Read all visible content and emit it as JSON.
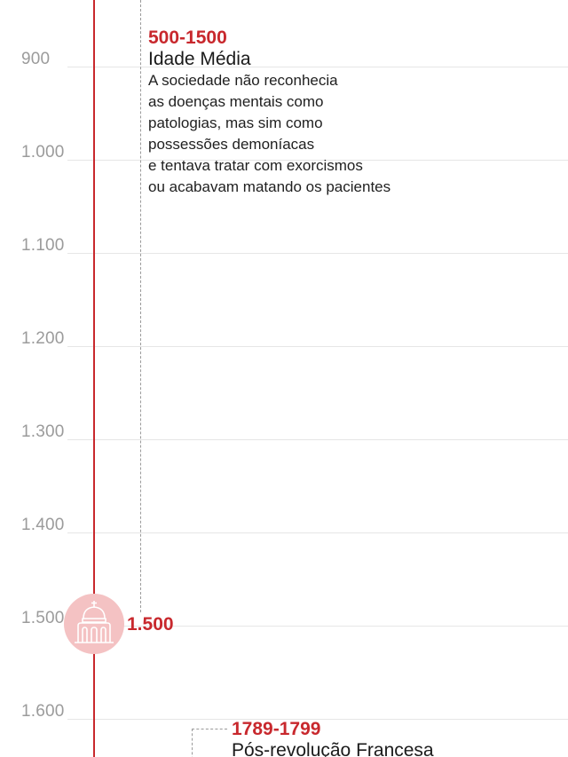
{
  "timeline": {
    "years": [
      "900",
      "1.000",
      "1.100",
      "1.200",
      "1.300",
      "1.400",
      "1.500",
      "1.600"
    ],
    "colors": {
      "accent": "#c8282d",
      "marker_fill": "#f4c2c3",
      "gridline": "#e6e6e6",
      "year_label": "#9b9b9b"
    }
  },
  "events": [
    {
      "years": "500-1500",
      "title": "Idade Média",
      "description": [
        "A sociedade não reconhecia",
        "as doenças mentais como",
        "patologias, mas sim como",
        "possessões demoníacas",
        "e tentava tratar com exorcismos",
        "ou acabavam matando os pacientes"
      ]
    },
    {
      "years": "1789-1799",
      "title": "Pós-revolução Francesa"
    }
  ],
  "marker": {
    "icon": "church-building-icon",
    "label": "1.500"
  }
}
